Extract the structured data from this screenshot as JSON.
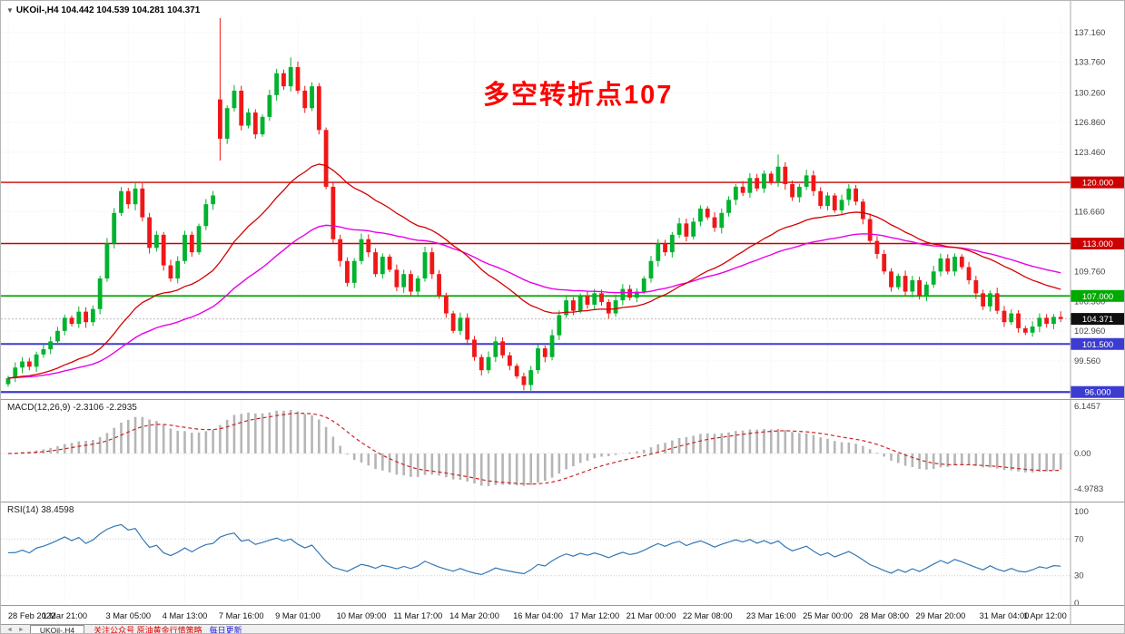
{
  "symbol_bar": {
    "marker": "▼",
    "text": "UKOil-,H4  104.442 104.539 104.281 104.371"
  },
  "annotation": {
    "text": "多空转折点107",
    "color": "#ff0000"
  },
  "macd_panel": {
    "label": "MACD(12,26,9) -2.3106 -2.2935",
    "axis_labels": [
      "6.1457",
      "0.00",
      "-4.9783"
    ],
    "hist_color": "#b5b5b5",
    "signal_color": "#cc2222"
  },
  "rsi_panel": {
    "label": "RSI(14) 38.4598",
    "axis_labels": [
      "100",
      "70",
      "30",
      "0"
    ],
    "guide_levels": [
      70,
      30
    ],
    "line_color": "#3377b5"
  },
  "bottom_bar": {
    "scroll_icons": "◄ ►",
    "tab": "UKOil-,H4",
    "promo_red": "关注公众号 原油黄金行情策略",
    "promo_blue": "每日更新"
  },
  "chart_data": {
    "type": "candlestick",
    "symbol": "UKOil-",
    "timeframe": "H4",
    "quote_line": {
      "open": 104.442,
      "high": 104.539,
      "low": 104.281,
      "close": 104.371
    },
    "price_axis_range": [
      95.4,
      138.7
    ],
    "grid": true,
    "price_ticks": [
      "137.160",
      "133.760",
      "130.260",
      "126.860",
      "123.460",
      "116.660",
      "109.760",
      "106.360",
      "102.960",
      "99.560"
    ],
    "price_levels": [
      {
        "price": 120.0,
        "label": "120.000",
        "color": "#cc0000",
        "width": 1.4
      },
      {
        "price": 113.0,
        "label": "113.000",
        "color": "#cc0000",
        "width": 1.4
      },
      {
        "price": 107.0,
        "label": "107.000",
        "color": "#00aa00",
        "width": 1.8
      },
      {
        "price": 101.5,
        "label": "101.500",
        "color": "#3c3cd0",
        "width": 2.0
      },
      {
        "price": 96.0,
        "label": "96.000",
        "color": "#3c3cd0",
        "width": 2.2
      }
    ],
    "current_price": {
      "value": 104.371,
      "label": "104.371",
      "badge_color": "#101010"
    },
    "up_color": "#00b22d",
    "down_color": "#f01717",
    "ma_fast": {
      "period": 30,
      "color": "#d40000"
    },
    "ma_slow": {
      "period": 60,
      "color": "#e800e8"
    },
    "first_open": 96.9,
    "closes": [
      97.6,
      98.8,
      99.5,
      98.9,
      100.3,
      100.9,
      101.8,
      103.0,
      104.5,
      103.8,
      105.2,
      104.0,
      105.5,
      109.0,
      113.0,
      116.5,
      119.0,
      117.5,
      119.3,
      116.0,
      112.5,
      114.0,
      110.5,
      109.0,
      111.0,
      114.0,
      112.0,
      115.0,
      117.5,
      118.5,
      125.0,
      128.5,
      130.5,
      126.5,
      128.0,
      125.5,
      127.5,
      130.0,
      132.5,
      131.0,
      133.2,
      130.5,
      128.5,
      131.0,
      126.0,
      119.5,
      113.5,
      111.0,
      108.5,
      111.0,
      113.5,
      112.0,
      109.5,
      111.5,
      110.0,
      108.0,
      109.5,
      107.5,
      109.0,
      112.0,
      109.5,
      107.0,
      105.0,
      103.0,
      104.5,
      102.0,
      100.0,
      98.5,
      100.0,
      101.8,
      100.2,
      99.0,
      97.8,
      96.8,
      98.5,
      101.0,
      100.0,
      102.5,
      104.8,
      106.5,
      105.3,
      107.0,
      106.0,
      107.3,
      106.3,
      105.0,
      106.5,
      107.8,
      106.8,
      107.5,
      109.0,
      111.0,
      113.0,
      112.0,
      114.0,
      115.3,
      113.8,
      115.5,
      117.0,
      116.0,
      114.8,
      116.5,
      118.0,
      119.5,
      118.8,
      120.5,
      119.3,
      121.0,
      120.0,
      121.8,
      119.8,
      118.3,
      119.5,
      120.8,
      119.0,
      117.3,
      118.5,
      116.8,
      118.0,
      119.3,
      117.8,
      115.8,
      113.3,
      111.8,
      109.8,
      108.0,
      109.3,
      107.5,
      108.8,
      107.0,
      108.3,
      109.8,
      111.3,
      109.8,
      111.5,
      110.3,
      108.8,
      107.3,
      105.8,
      107.3,
      105.3,
      104.0,
      105.0,
      103.3,
      102.8,
      103.5,
      104.5,
      103.8,
      104.6,
      104.371
    ],
    "exceptions": {
      "18": [
        117.5,
        120.1,
        116.8,
        119.3
      ],
      "30": [
        129.5,
        138.8,
        122.5,
        125.0
      ],
      "40": [
        131.0,
        134.3,
        130.4,
        133.2
      ],
      "73": [
        97.8,
        98.2,
        96.2,
        96.8
      ],
      "109": [
        120.0,
        123.2,
        119.5,
        121.8
      ]
    },
    "time_labels": [
      "28 Feb 2022",
      "1 Mar 21:00",
      "3 Mar 05:00",
      "4 Mar 13:00",
      "7 Mar 16:00",
      "9 Mar 01:00",
      "10 Mar 09:00",
      "11 Mar 17:00",
      "14 Mar 20:00",
      "16 Mar 04:00",
      "17 Mar 12:00",
      "21 Mar 00:00",
      "22 Mar 08:00",
      "23 Mar 16:00",
      "25 Mar 00:00",
      "28 Mar 08:00",
      "29 Mar 20:00",
      "31 Mar 04:00",
      "1 Apr 12:00"
    ],
    "macd": {
      "params": [
        12,
        26,
        9
      ],
      "last_main": -2.3106,
      "last_signal": -2.2935,
      "axis_range": [
        -4.9783,
        6.1457
      ]
    },
    "rsi": {
      "period": 14,
      "last_value": 38.4598,
      "axis_range": [
        0,
        100
      ]
    }
  }
}
